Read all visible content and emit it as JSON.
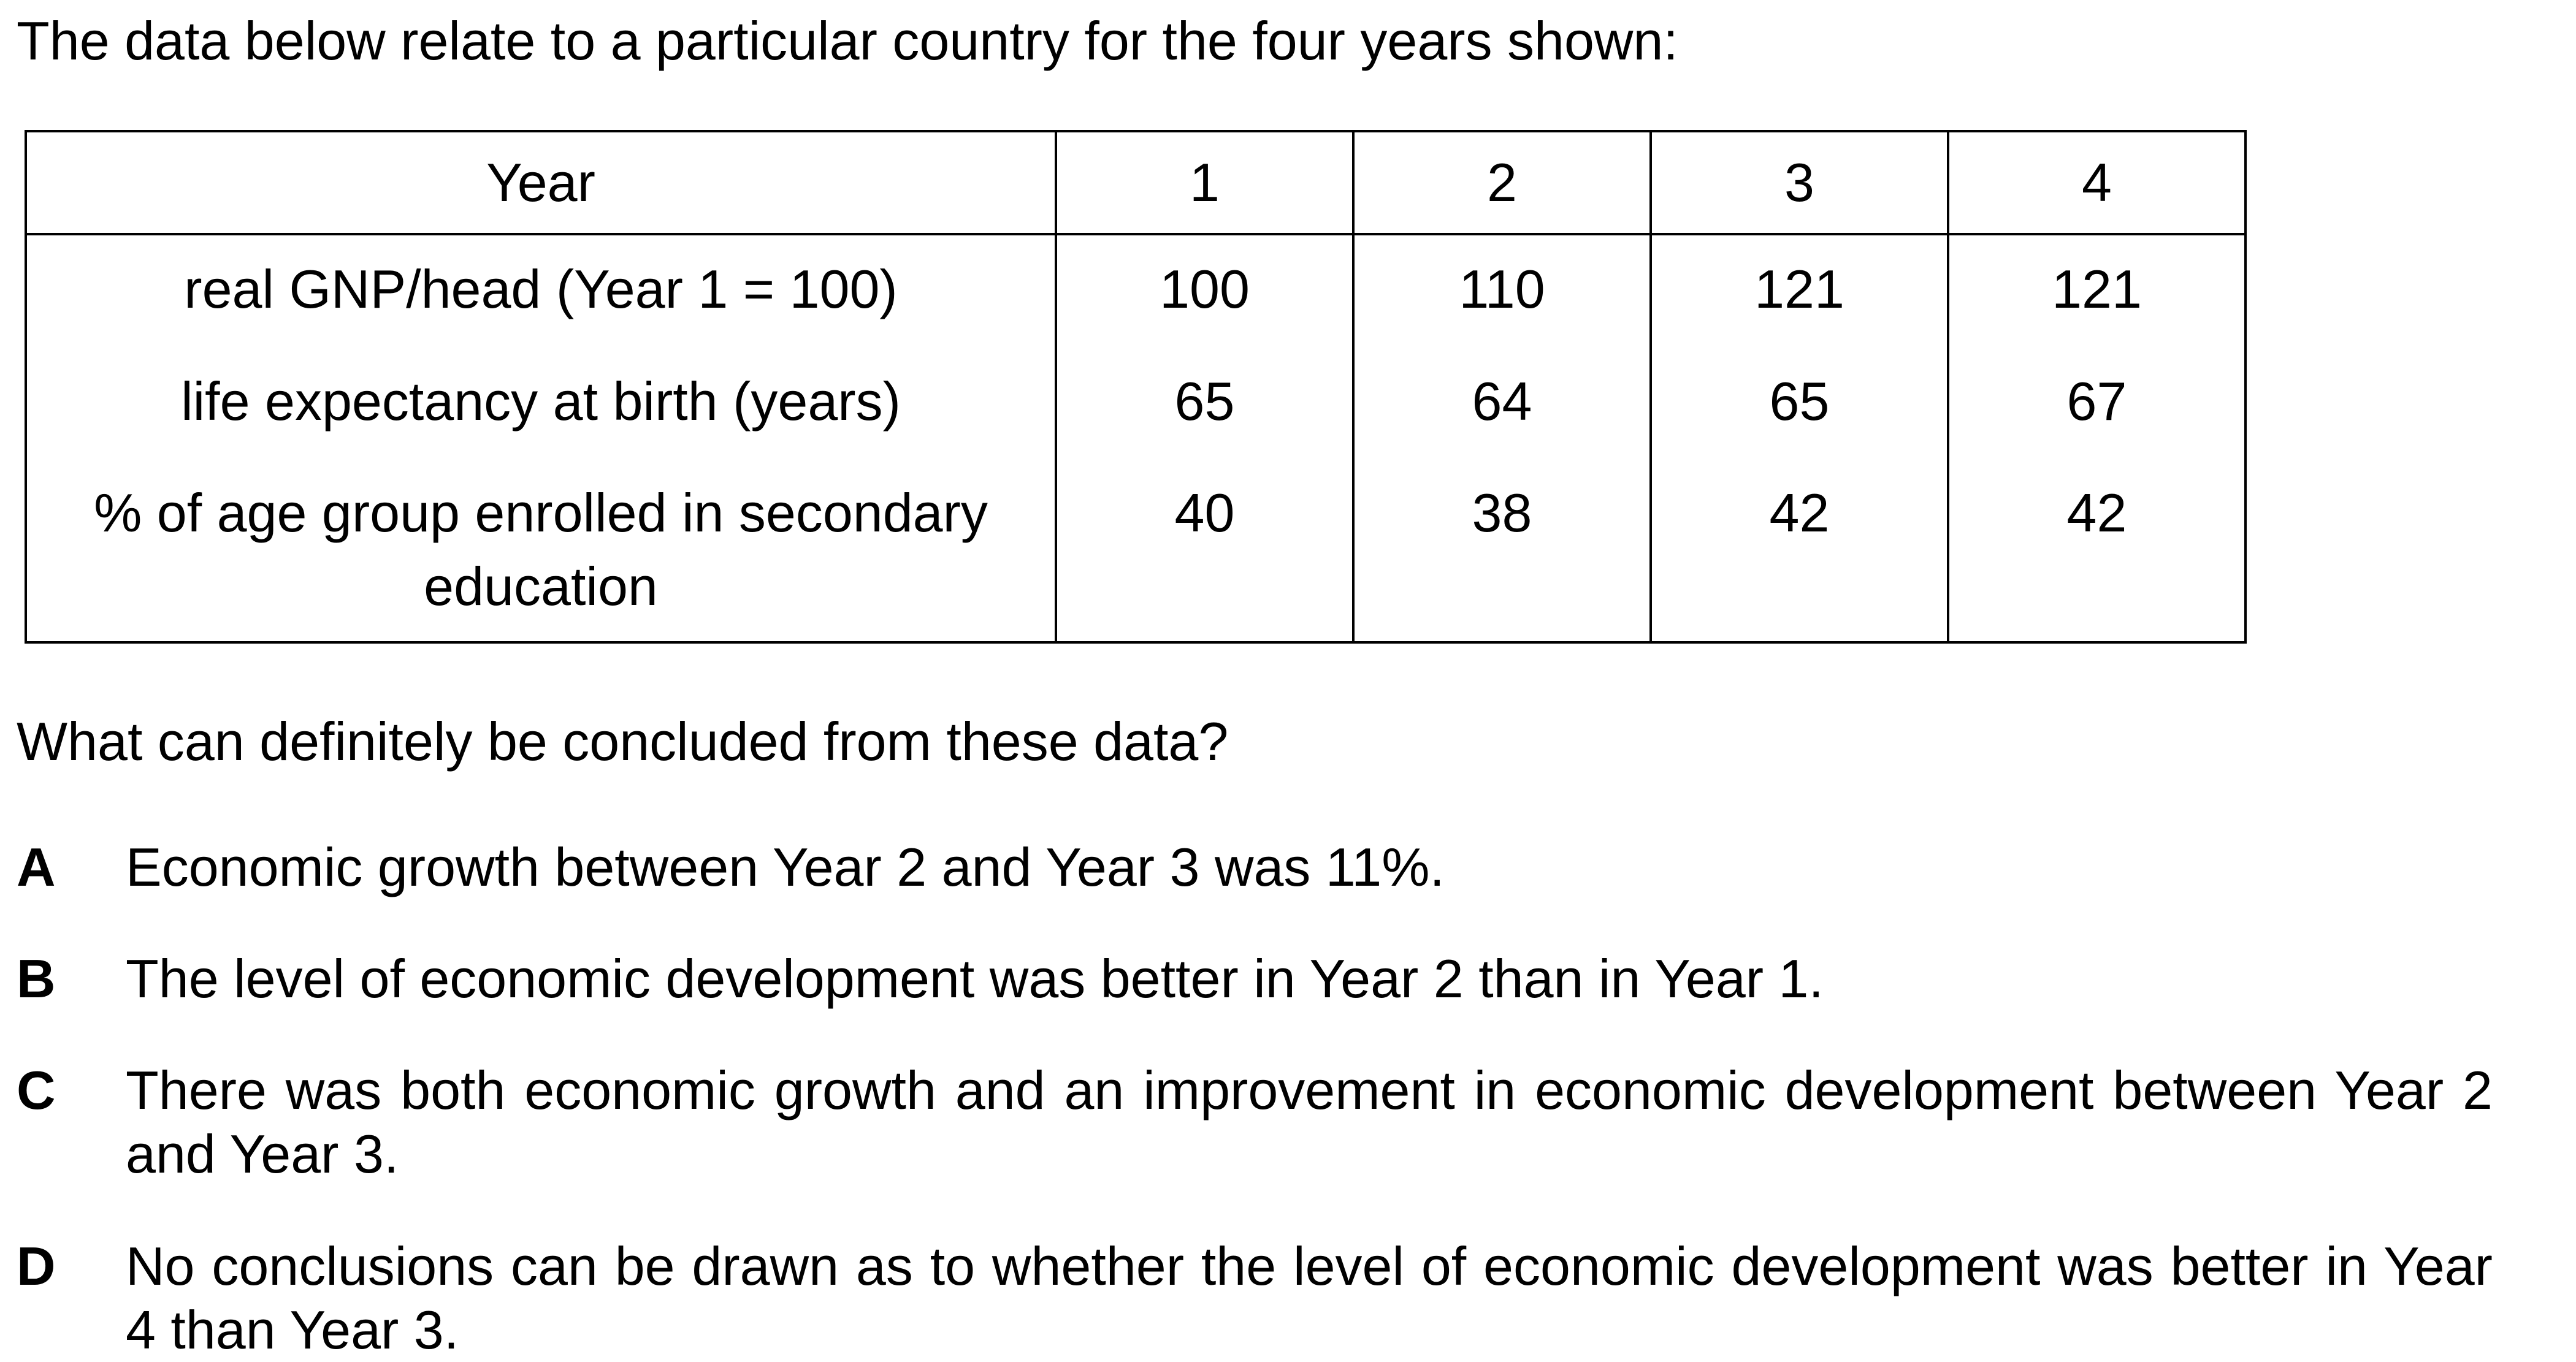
{
  "intro": "The data below relate to a particular country for the four years shown:",
  "table": {
    "header_label": "Year",
    "years": [
      "1",
      "2",
      "3",
      "4"
    ],
    "rows": [
      {
        "label": "real GNP/head (Year 1 = 100)",
        "values": [
          "100",
          "110",
          "121",
          "121"
        ]
      },
      {
        "label": "life expectancy at birth (years)",
        "values": [
          "65",
          "64",
          "65",
          "67"
        ]
      },
      {
        "label": "% of age group enrolled in secondary education",
        "values": [
          "40",
          "38",
          "42",
          "42"
        ]
      }
    ]
  },
  "question": "What can definitely be concluded from these data?",
  "options": [
    {
      "letter": "A",
      "text": "Economic growth between Year 2 and Year 3 was 11%."
    },
    {
      "letter": "B",
      "text": "The level of economic development was better in Year 2 than in Year 1."
    },
    {
      "letter": "C",
      "text": "There was both economic growth and an improvement in economic development between Year 2 and Year 3."
    },
    {
      "letter": "D",
      "text": "No conclusions can be drawn as to whether the level of economic development was better in Year 4 than Year 3."
    }
  ]
}
